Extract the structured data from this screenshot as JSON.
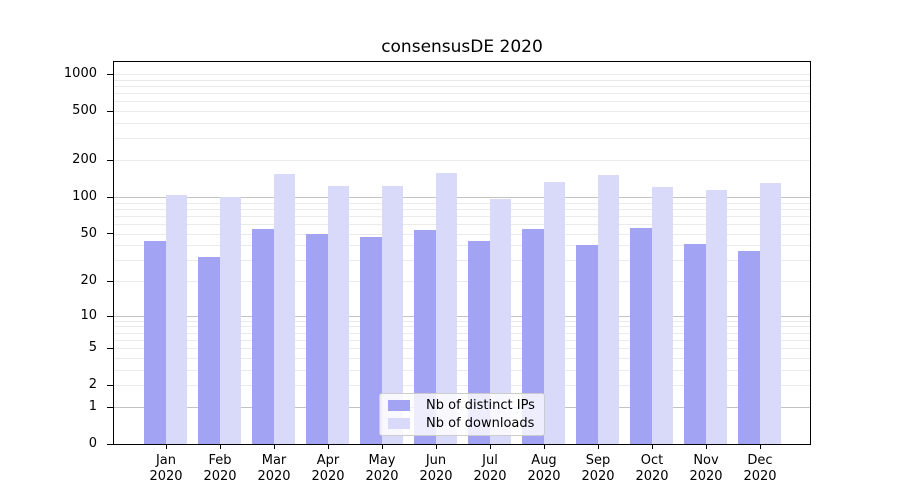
{
  "title": "consensusDE 2020",
  "legend": {
    "items": [
      {
        "label": "Nb of distinct IPs"
      },
      {
        "label": "Nb of downloads"
      }
    ]
  },
  "colors": {
    "ips_bar": "#a3a3f3",
    "downloads_bar": "#d9d9fa",
    "grid_major": "#c3c3c3",
    "grid_minor": "#eaeaea",
    "axis": "#000000",
    "legend_border": "#cccccc",
    "background": "#ffffff"
  },
  "chart_data": {
    "type": "bar",
    "title": "consensusDE 2020",
    "categories": [
      "Jan 2020",
      "Feb 2020",
      "Mar 2020",
      "Apr 2020",
      "May 2020",
      "Jun 2020",
      "Jul 2020",
      "Aug 2020",
      "Sep 2020",
      "Oct 2020",
      "Nov 2020",
      "Dec 2020"
    ],
    "series": [
      {
        "name": "Nb of distinct IPs",
        "color": "#a3a3f3",
        "values": [
          43,
          32,
          54,
          50,
          47,
          53,
          43,
          54,
          40,
          56,
          41,
          36
        ]
      },
      {
        "name": "Nb of downloads",
        "color": "#d9d9fa",
        "values": [
          104,
          100,
          153,
          122,
          122,
          158,
          96,
          133,
          150,
          121,
          114,
          129
        ]
      }
    ],
    "xlabel": "",
    "ylabel": "",
    "yscale": "log10(value+1)",
    "ylim": [
      0,
      1253
    ],
    "yticks": [
      1000,
      500,
      200,
      100,
      50,
      20,
      10,
      5,
      2,
      1,
      0
    ],
    "grid": "horizontal; major gray lines at 1, 10, 100; faint minor lines at 2-9 per decade and 1000",
    "legend_position": "inside bottom-center"
  }
}
